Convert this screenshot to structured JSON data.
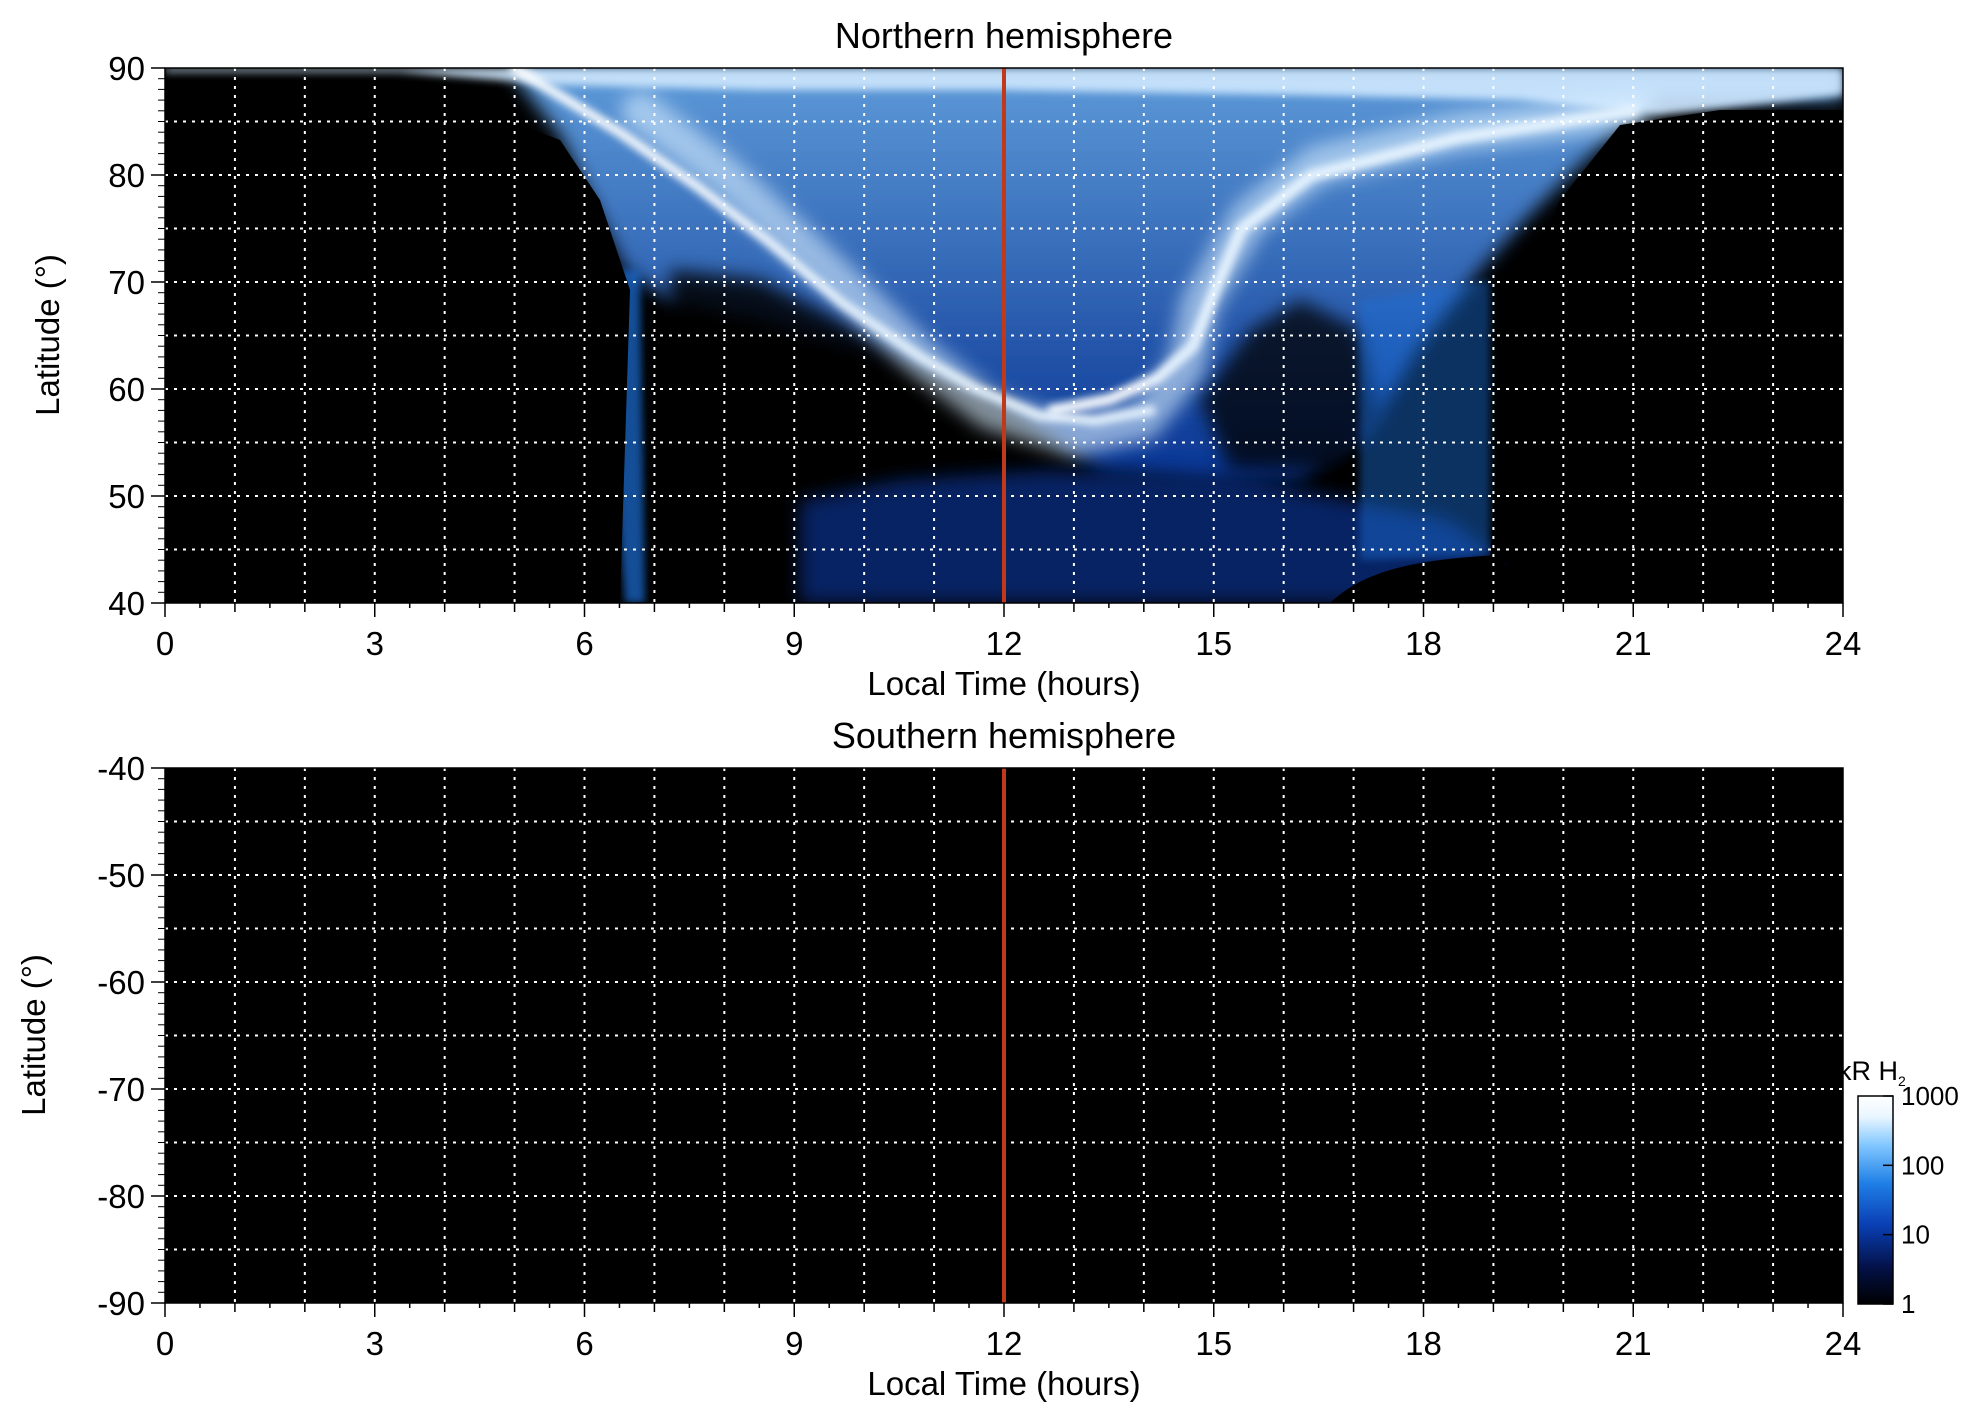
{
  "colors": {
    "background": "#000000",
    "grid": "#ffffff",
    "noon_line": "#c0391b",
    "colormap": [
      "#000000",
      "#03124a",
      "#0a3fb4",
      "#1f7fe6",
      "#7fc6ff",
      "#e9f6ff",
      "#ffffff"
    ]
  },
  "chart_data": [
    {
      "type": "heatmap",
      "title": "Northern hemisphere",
      "xlabel": "Local Time (hours)",
      "ylabel": "Latitude (°)",
      "xlim": [
        0,
        24
      ],
      "ylim": [
        40,
        90
      ],
      "xticks": [
        0,
        3,
        6,
        9,
        12,
        15,
        18,
        21,
        24
      ],
      "yticks": [
        40,
        50,
        60,
        70,
        80,
        90
      ],
      "grid": true,
      "grid_x_step": 1,
      "grid_y_step": 5,
      "reference_line_x": 12,
      "features": {
        "main_oval": [
          [
            6.8,
            86
          ],
          [
            8,
            80
          ],
          [
            9.5,
            71
          ],
          [
            10.8,
            63
          ],
          [
            11.8,
            58
          ],
          [
            13,
            55.5
          ],
          [
            14,
            57
          ],
          [
            14.6,
            62
          ],
          [
            14.8,
            68
          ],
          [
            15.5,
            76
          ],
          [
            16.5,
            81
          ],
          [
            18.5,
            84
          ],
          [
            21,
            86
          ]
        ],
        "morning_arc": [
          [
            5,
            90
          ],
          [
            6.5,
            84
          ],
          [
            7.6,
            79
          ],
          [
            8.6,
            74
          ],
          [
            9.7,
            68
          ],
          [
            10.8,
            63
          ],
          [
            11.6,
            60
          ],
          [
            12.5,
            57.5
          ],
          [
            13.3,
            57
          ],
          [
            14.1,
            58
          ]
        ],
        "afternoon_arc": [
          [
            12.7,
            58
          ],
          [
            13.5,
            59
          ],
          [
            14.2,
            61
          ],
          [
            14.7,
            64
          ],
          [
            15,
            69
          ],
          [
            15.4,
            75
          ],
          [
            16.4,
            80
          ],
          [
            18.5,
            83.5
          ],
          [
            21,
            86
          ]
        ],
        "emission_region_lower_bound": [
          [
            6.6,
            40
          ],
          [
            6.8,
            68
          ],
          [
            7.2,
            72
          ],
          [
            7.8,
            71
          ],
          [
            8.8,
            68
          ],
          [
            9.8,
            65
          ],
          [
            10.8,
            60
          ],
          [
            11.8,
            55
          ],
          [
            12.8,
            53
          ],
          [
            13.8,
            52
          ],
          [
            14.8,
            52
          ],
          [
            15.8,
            55
          ],
          [
            16.5,
            60
          ],
          [
            17.2,
            64
          ]
        ],
        "polar_cap_boundary": [
          [
            4.9,
            90
          ],
          [
            5.5,
            84
          ],
          [
            6.6,
            72
          ],
          [
            7.2,
            64
          ],
          [
            7.8,
            56
          ],
          [
            8.8,
            48
          ],
          [
            9.5,
            44
          ],
          [
            10,
            40
          ]
        ],
        "dusk_boundary": [
          [
            16.2,
            40
          ],
          [
            16.8,
            55
          ],
          [
            17.5,
            66
          ],
          [
            18.3,
            72
          ],
          [
            19,
            75
          ],
          [
            19.6,
            80
          ],
          [
            20.3,
            84
          ],
          [
            21.5,
            87
          ],
          [
            24,
            88
          ]
        ]
      }
    },
    {
      "type": "heatmap",
      "title": "Southern hemisphere",
      "xlabel": "Local Time (hours)",
      "ylabel": "Latitude (°)",
      "xlim": [
        0,
        24
      ],
      "ylim": [
        -90,
        -40
      ],
      "xticks": [
        0,
        3,
        6,
        9,
        12,
        15,
        18,
        21,
        24
      ],
      "yticks": [
        -40,
        -50,
        -60,
        -70,
        -80,
        -90
      ],
      "grid": true,
      "grid_x_step": 1,
      "grid_y_step": 5,
      "reference_line_x": 12
    }
  ],
  "colorbar": {
    "unit": "kR H",
    "unit_subscript": "2",
    "scale": "log",
    "range": [
      1,
      1000
    ],
    "ticks": [
      "1000",
      "100",
      "10",
      "1"
    ]
  }
}
